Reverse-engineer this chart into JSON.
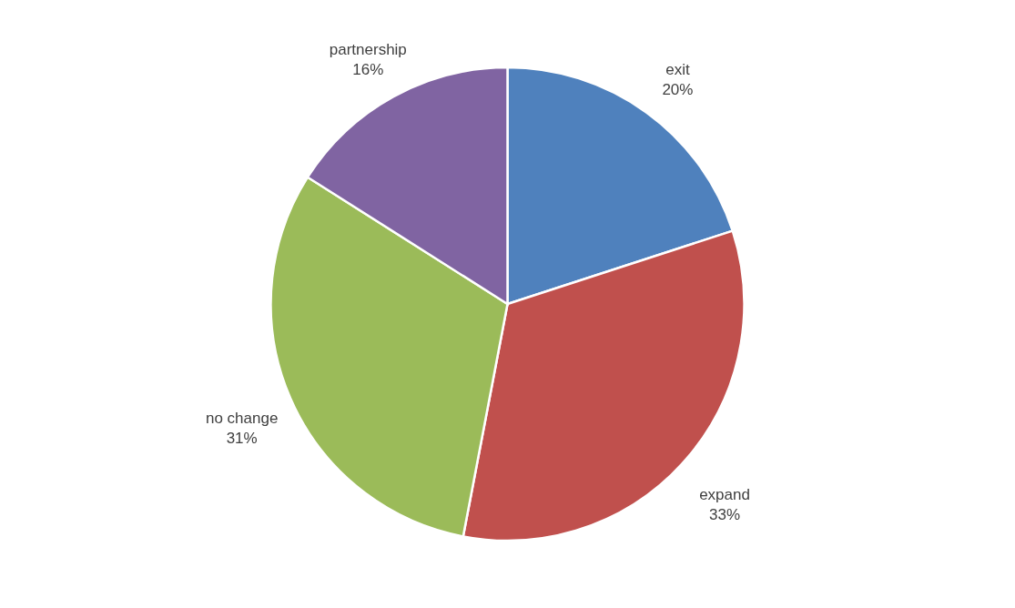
{
  "chart_data": {
    "type": "pie",
    "categories": [
      "exit",
      "expand",
      "no change",
      "partnership"
    ],
    "values": [
      20,
      33,
      31,
      16
    ],
    "colors": [
      "#4f81bd",
      "#c0504d",
      "#9bbb59",
      "#8064a2"
    ],
    "value_labels": [
      "20%",
      "33%",
      "31%",
      "16%"
    ],
    "legend": false
  }
}
